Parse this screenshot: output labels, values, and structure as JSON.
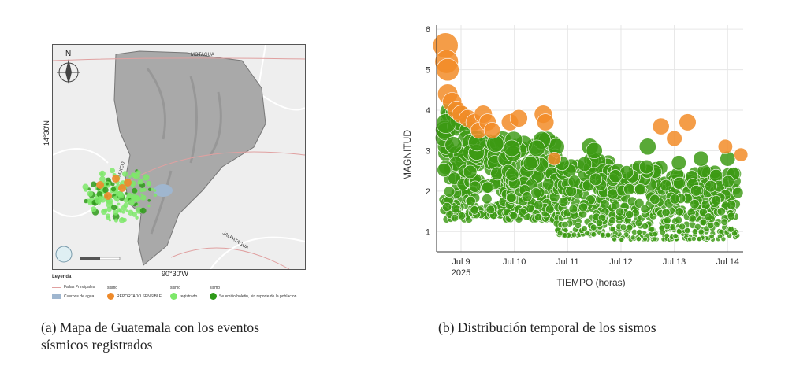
{
  "map": {
    "north_label": "N",
    "lat_label": "14°30'N",
    "lon_label": "90°30'W",
    "place_labels": [
      "MOTAGUA",
      "MIXCO",
      "JALPATAGUA"
    ],
    "legend": {
      "title": "Leyenda",
      "faults": "Fallas Principales",
      "water": "Cuerpos de agua",
      "group_label": "sismo",
      "reported": "REPORTADO SENSIBLE",
      "registered": "registrado",
      "bulletin": "Se emitio boletin, sin reporte de la poblacion"
    },
    "colors": {
      "reported": "#ee8a2a",
      "registered": "#7ee86a",
      "bulletin": "#2f9a1a",
      "water": "#9fb6cf",
      "fault": "#e0a0a0"
    }
  },
  "captions": {
    "a_line1": "(a) Mapa de Guatemala con los eventos",
    "a_line2": "sísmicos registrados",
    "b": "(b) Distribución temporal de los sismos"
  },
  "chart_data": {
    "type": "scatter",
    "xlabel": "TIEMPO (horas)",
    "ylabel": "MAGNITUD",
    "x_ticks": [
      "Jul 9",
      "Jul 10",
      "Jul 11",
      "Jul 12",
      "Jul 13",
      "Jul 14"
    ],
    "x_tick_sub": "2025",
    "x_range": [
      "2025-07-08 13:00",
      "2025-07-14 07:00"
    ],
    "y_ticks": [
      1,
      2,
      3,
      4,
      5,
      6
    ],
    "ylim": [
      0.5,
      6.1
    ],
    "grid": true,
    "colors": {
      "reported": "#f28c28",
      "bulletin": "#3c9a14"
    },
    "reported_points": [
      {
        "x": "2025-07-08 17:00",
        "y": 5.6
      },
      {
        "x": "2025-07-08 17:30",
        "y": 5.2
      },
      {
        "x": "2025-07-08 18:00",
        "y": 5.0
      },
      {
        "x": "2025-07-08 18:00",
        "y": 4.4
      },
      {
        "x": "2025-07-08 20:00",
        "y": 4.2
      },
      {
        "x": "2025-07-08 22:00",
        "y": 4.0
      },
      {
        "x": "2025-07-09 00:00",
        "y": 3.9
      },
      {
        "x": "2025-07-09 03:00",
        "y": 3.8
      },
      {
        "x": "2025-07-09 06:00",
        "y": 3.7
      },
      {
        "x": "2025-07-09 08:00",
        "y": 3.5
      },
      {
        "x": "2025-07-09 10:00",
        "y": 3.9
      },
      {
        "x": "2025-07-09 12:00",
        "y": 3.7
      },
      {
        "x": "2025-07-09 14:00",
        "y": 3.5
      },
      {
        "x": "2025-07-09 22:00",
        "y": 3.7
      },
      {
        "x": "2025-07-10 02:00",
        "y": 3.8
      },
      {
        "x": "2025-07-10 13:00",
        "y": 3.9
      },
      {
        "x": "2025-07-10 14:00",
        "y": 3.7
      },
      {
        "x": "2025-07-10 18:00",
        "y": 2.8
      },
      {
        "x": "2025-07-12 18:00",
        "y": 3.6
      },
      {
        "x": "2025-07-13 00:00",
        "y": 3.3
      },
      {
        "x": "2025-07-13 06:00",
        "y": 3.7
      },
      {
        "x": "2025-07-13 23:00",
        "y": 3.1
      },
      {
        "x": "2025-07-14 06:00",
        "y": 2.9
      }
    ],
    "bulletin_bands": [
      {
        "start": "2025-07-08 16:00",
        "end": "2025-07-09 04:00",
        "ymin": 1.3,
        "ymax": 4.0
      },
      {
        "start": "2025-07-09 04:00",
        "end": "2025-07-09 20:00",
        "ymin": 1.4,
        "ymax": 3.4
      },
      {
        "start": "2025-07-09 20:00",
        "end": "2025-07-10 19:00",
        "ymin": 1.3,
        "ymax": 3.3
      },
      {
        "start": "2025-07-10 19:00",
        "end": "2025-07-11 20:00",
        "ymin": 0.9,
        "ymax": 2.8
      },
      {
        "start": "2025-07-11 20:00",
        "end": "2025-07-12 20:00",
        "ymin": 0.8,
        "ymax": 2.6
      },
      {
        "start": "2025-07-12 20:00",
        "end": "2025-07-14 05:00",
        "ymin": 0.8,
        "ymax": 2.5
      }
    ],
    "bulletin_extra": [
      {
        "x": "2025-07-11 10:00",
        "y": 3.1
      },
      {
        "x": "2025-07-11 12:00",
        "y": 3.0
      },
      {
        "x": "2025-07-12 12:00",
        "y": 3.1
      },
      {
        "x": "2025-07-13 02:00",
        "y": 2.7
      },
      {
        "x": "2025-07-13 12:00",
        "y": 2.8
      },
      {
        "x": "2025-07-14 00:00",
        "y": 2.8
      }
    ]
  }
}
